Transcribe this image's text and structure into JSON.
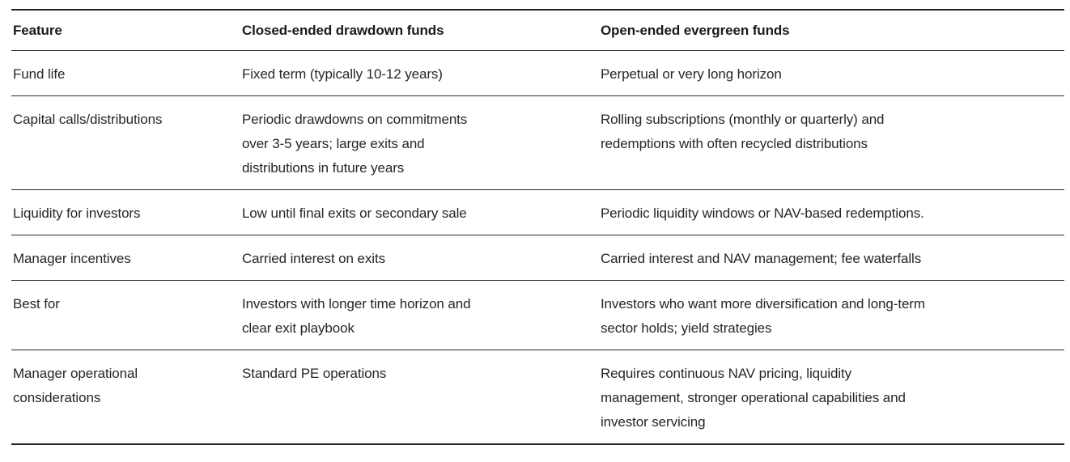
{
  "colors": {
    "background": "#ffffff",
    "text_body": "#262626",
    "text_header": "#1a1a1a",
    "rule_inner": "#2b2b2b",
    "rule_outer": "#222222"
  },
  "table": {
    "columns": [
      {
        "label": "Feature"
      },
      {
        "label": "Closed-ended drawdown funds"
      },
      {
        "label": "Open-ended evergreen funds"
      }
    ],
    "rows": [
      {
        "feature": "Fund life",
        "closed": "Fixed term (typically 10-12 years)",
        "open": "Perpetual or very long horizon"
      },
      {
        "feature": "Capital calls/distributions",
        "closed": "Periodic drawdowns on commitments\nover 3-5 years; large exits and\ndistributions in future years",
        "open": "Rolling subscriptions (monthly or quarterly) and\nredemptions with often recycled distributions"
      },
      {
        "feature": "Liquidity for investors",
        "closed": "Low until final exits or secondary sale",
        "open": "Periodic liquidity windows or NAV-based redemptions."
      },
      {
        "feature": "Manager incentives",
        "closed": "Carried interest on exits",
        "open": "Carried interest and NAV management; fee waterfalls"
      },
      {
        "feature": "Best for",
        "closed": "Investors with longer time horizon and\nclear exit playbook",
        "open": "Investors who want more diversification and long-term\nsector holds; yield strategies"
      },
      {
        "feature": "Manager operational\nconsiderations",
        "closed": "Standard PE operations",
        "open": "Requires continuous NAV pricing, liquidity\nmanagement, stronger operational capabilities and\ninvestor servicing"
      }
    ]
  }
}
